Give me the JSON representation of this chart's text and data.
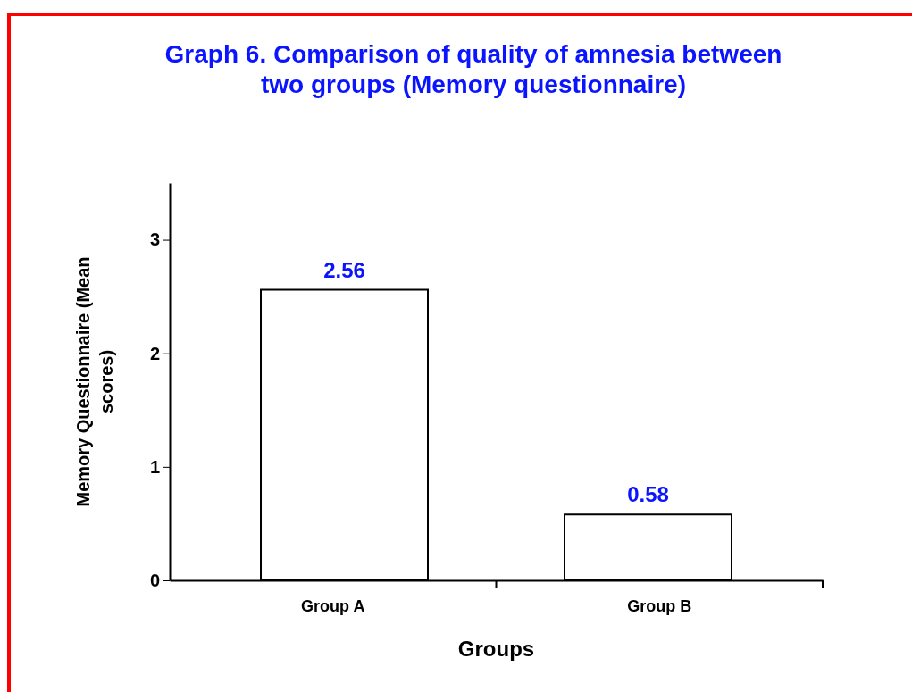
{
  "chart_data": {
    "type": "bar",
    "title": "Graph 6. Comparison of quality of amnesia between two groups (Memory questionnaire)",
    "xlabel": "Groups",
    "ylabel": "Memory Questionnaire (Mean scores)",
    "categories": [
      "Group A",
      "Group B"
    ],
    "values": [
      2.56,
      0.58
    ],
    "color": "#ffffff",
    "ylim": [
      0,
      3.5
    ],
    "yticks": [
      0,
      1,
      2,
      3
    ],
    "data_labels": true
  }
}
